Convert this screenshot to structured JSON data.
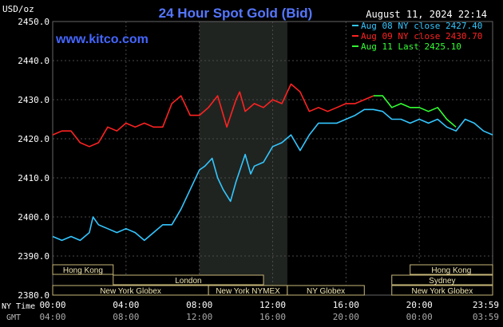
{
  "chart_data": {
    "type": "line",
    "title": "24 Hour Spot Gold (Bid)",
    "timestamp": "August 11, 2024 22:14",
    "watermark": "www.kitco.com",
    "unit": "USD/oz",
    "ylim": [
      2380,
      2450
    ],
    "yticks": [
      "2450.0",
      "2440.0",
      "2430.0",
      "2420.0",
      "2410.0",
      "2400.0",
      "2390.0",
      "2380.0"
    ],
    "x_row_labels": {
      "ny": "NY Time",
      "gmt": "GMT"
    },
    "x_ticks_ny": [
      "00:00",
      "04:00",
      "08:00",
      "12:00",
      "16:00",
      "20:00",
      "23:59"
    ],
    "x_ticks_gmt": [
      "04:00",
      "08:00",
      "12:00",
      "16:00",
      "20:00",
      "00:00",
      "03:59"
    ],
    "grid": true,
    "shaded_region": [
      8.0,
      12.8
    ],
    "legend": [
      {
        "text": "Aug 08 NY close 2427.40",
        "color": "#33c6ff"
      },
      {
        "text": "Aug 09 NY close 2430.70",
        "color": "#ff2222"
      },
      {
        "text": "Aug 11 Last 2425.10",
        "color": "#33ff33"
      }
    ],
    "series": [
      {
        "name": "Aug 08",
        "color": "#33c6ff",
        "x": [
          0,
          0.5,
          1,
          1.5,
          2,
          2.2,
          2.5,
          3,
          3.5,
          4,
          4.5,
          5,
          5.5,
          6,
          6.5,
          7,
          7.5,
          8,
          8.3,
          8.7,
          9,
          9.3,
          9.7,
          10,
          10.5,
          10.8,
          11,
          11.5,
          12,
          12.5,
          13,
          13.5,
          14,
          14.5,
          15,
          15.5,
          16,
          16.5,
          17,
          17.5,
          18,
          18.5,
          19,
          19.5,
          20,
          20.5,
          21,
          21.5,
          22,
          22.5,
          23,
          23.5,
          24
        ],
        "y": [
          2395,
          2394,
          2395,
          2394,
          2396,
          2400,
          2398,
          2397,
          2396,
          2397,
          2396,
          2394,
          2396,
          2398,
          2398,
          2402,
          2407,
          2412,
          2413,
          2415,
          2410,
          2407,
          2404,
          2409,
          2416,
          2411,
          2413,
          2414,
          2418,
          2419,
          2421,
          2417,
          2421,
          2424,
          2424,
          2424,
          2425,
          2426,
          2427.5,
          2427.5,
          2427,
          2425,
          2425,
          2424,
          2425,
          2424,
          2425,
          2423,
          2422,
          2425,
          2424,
          2422,
          2421
        ]
      },
      {
        "name": "Aug 09",
        "color": "#ff2222",
        "x": [
          0,
          0.5,
          1,
          1.5,
          2,
          2.5,
          3,
          3.5,
          4,
          4.5,
          5,
          5.5,
          6,
          6.5,
          7,
          7.5,
          8,
          8.5,
          9,
          9.5,
          10,
          10.2,
          10.5,
          11,
          11.5,
          12,
          12.5,
          13,
          13.5,
          14,
          14.5,
          15,
          15.5,
          16,
          16.5,
          17,
          17.5
        ],
        "y": [
          2421,
          2422,
          2422,
          2419,
          2418,
          2419,
          2423,
          2422,
          2424,
          2423,
          2424,
          2423,
          2423,
          2429,
          2431,
          2426,
          2426,
          2428,
          2431,
          2423,
          2430,
          2432,
          2427,
          2429,
          2428,
          2430,
          2429,
          2434,
          2432,
          2427,
          2428,
          2427,
          2428,
          2429,
          2429,
          2430,
          2431
        ]
      },
      {
        "name": "Aug 11",
        "color": "#33ff33",
        "x": [
          17.5,
          18,
          18.5,
          19,
          19.5,
          20,
          20.5,
          21,
          21.5,
          22
        ],
        "y": [
          2431,
          2431,
          2428,
          2429,
          2428,
          2428,
          2427,
          2428,
          2425,
          2423
        ]
      }
    ],
    "sessions": [
      {
        "label": "Hong Kong",
        "start": 0,
        "end": 3.3,
        "row": 0
      },
      {
        "label": "Hong Kong",
        "start": 19.5,
        "end": 24,
        "row": 0
      },
      {
        "label": "London",
        "start": 3.3,
        "end": 11.5,
        "row": 1
      },
      {
        "label": "Sydney",
        "start": 18.5,
        "end": 24,
        "row": 1
      },
      {
        "label": "New York Globex",
        "start": 0,
        "end": 8.5,
        "row": 2
      },
      {
        "label": "New York NYMEX",
        "start": 8.5,
        "end": 12.8,
        "row": 2
      },
      {
        "label": "NY Globex",
        "start": 12.8,
        "end": 17,
        "row": 2
      },
      {
        "label": "New York Globex",
        "start": 18.5,
        "end": 24,
        "row": 2
      }
    ]
  }
}
